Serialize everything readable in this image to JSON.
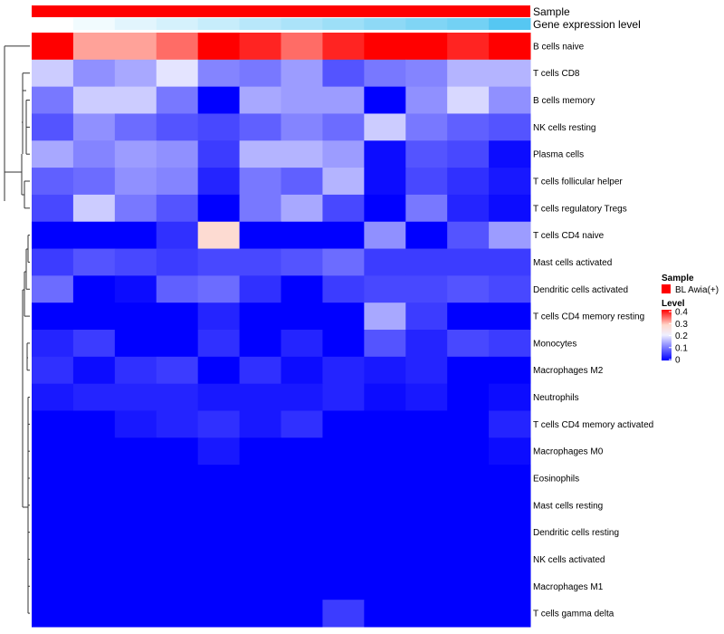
{
  "chart_data": {
    "type": "heatmap",
    "annotations": {
      "sample_label": "Sample",
      "expression_label": "Gene expression level"
    },
    "rows": [
      "B cells naive",
      "T cells CD8",
      "B cells memory",
      "NK cells resting",
      "Plasma cells",
      "T cells follicular helper",
      "T cells regulatory  Tregs",
      "T cells CD4 naive",
      "Mast cells activated",
      "Dendritic cells activated",
      "T cells CD4 memory resting",
      "Monocytes",
      "Macrophages M2",
      "Neutrophils",
      "T cells CD4 memory activated",
      "Macrophages M0",
      "Eosinophils",
      "Mast cells resting",
      "Dendritic cells resting",
      "NK cells activated",
      "Macrophages M1",
      "T cells gamma delta"
    ],
    "values": [
      [
        0.4,
        0.31,
        0.31,
        0.34,
        0.4,
        0.38,
        0.34,
        0.38,
        0.4,
        0.4,
        0.38,
        0.4
      ],
      [
        0.17,
        0.12,
        0.14,
        0.19,
        0.11,
        0.1,
        0.13,
        0.07,
        0.1,
        0.11,
        0.15,
        0.15
      ],
      [
        0.1,
        0.17,
        0.17,
        0.1,
        0.0,
        0.14,
        0.13,
        0.13,
        0.0,
        0.12,
        0.18,
        0.12
      ],
      [
        0.07,
        0.12,
        0.09,
        0.07,
        0.06,
        0.08,
        0.11,
        0.09,
        0.17,
        0.1,
        0.08,
        0.07
      ],
      [
        0.14,
        0.11,
        0.13,
        0.12,
        0.05,
        0.15,
        0.15,
        0.13,
        0.01,
        0.07,
        0.06,
        0.01
      ],
      [
        0.08,
        0.09,
        0.12,
        0.11,
        0.03,
        0.1,
        0.08,
        0.15,
        0.01,
        0.06,
        0.04,
        0.02
      ],
      [
        0.06,
        0.17,
        0.1,
        0.07,
        0.0,
        0.1,
        0.14,
        0.06,
        0.0,
        0.1,
        0.03,
        0.01
      ],
      [
        0.0,
        0.0,
        0.0,
        0.04,
        0.27,
        0.0,
        0.0,
        0.0,
        0.12,
        0.0,
        0.07,
        0.13
      ],
      [
        0.05,
        0.07,
        0.06,
        0.05,
        0.06,
        0.06,
        0.07,
        0.09,
        0.05,
        0.05,
        0.05,
        0.05
      ],
      [
        0.09,
        0.0,
        0.01,
        0.08,
        0.09,
        0.04,
        0.0,
        0.05,
        0.06,
        0.06,
        0.07,
        0.06
      ],
      [
        0.0,
        0.0,
        0.0,
        0.0,
        0.03,
        0.0,
        0.0,
        0.0,
        0.14,
        0.05,
        0.0,
        0.0
      ],
      [
        0.03,
        0.05,
        0.0,
        0.0,
        0.04,
        0.0,
        0.03,
        0.0,
        0.07,
        0.03,
        0.06,
        0.05
      ],
      [
        0.04,
        0.01,
        0.04,
        0.05,
        0.0,
        0.04,
        0.01,
        0.03,
        0.02,
        0.03,
        0.0,
        0.0
      ],
      [
        0.02,
        0.03,
        0.03,
        0.03,
        0.02,
        0.02,
        0.02,
        0.03,
        0.01,
        0.02,
        0.0,
        0.01
      ],
      [
        0.0,
        0.0,
        0.02,
        0.03,
        0.04,
        0.02,
        0.04,
        0.0,
        0.0,
        0.0,
        0.0,
        0.03
      ],
      [
        0.0,
        0.0,
        0.0,
        0.0,
        0.02,
        0.0,
        0.0,
        0.0,
        0.0,
        0.0,
        0.0,
        0.01
      ],
      [
        0.0,
        0.0,
        0.0,
        0.0,
        0.0,
        0.0,
        0.0,
        0.0,
        0.0,
        0.0,
        0.0,
        0.0
      ],
      [
        0.0,
        0.0,
        0.0,
        0.0,
        0.0,
        0.0,
        0.0,
        0.0,
        0.0,
        0.0,
        0.0,
        0.0
      ],
      [
        0.0,
        0.0,
        0.0,
        0.0,
        0.0,
        0.0,
        0.0,
        0.0,
        0.0,
        0.0,
        0.0,
        0.0
      ],
      [
        0.0,
        0.0,
        0.0,
        0.0,
        0.0,
        0.0,
        0.0,
        0.0,
        0.0,
        0.0,
        0.0,
        0.0
      ],
      [
        0.0,
        0.0,
        0.0,
        0.0,
        0.0,
        0.0,
        0.0,
        0.0,
        0.0,
        0.0,
        0.0,
        0.0
      ],
      [
        0.0,
        0.0,
        0.0,
        0.0,
        0.0,
        0.0,
        0.0,
        0.05,
        0.0,
        0.0,
        0.0,
        0.0
      ]
    ],
    "expression_level": [
      0.0,
      0.08,
      0.17,
      0.25,
      0.33,
      0.42,
      0.5,
      0.58,
      0.67,
      0.75,
      0.83,
      1.0
    ],
    "color_scale": {
      "min": 0,
      "max": 0.4,
      "stops": [
        {
          "value": 0.0,
          "color": "#0000ff"
        },
        {
          "value": 0.2,
          "color": "#f0f0ff"
        },
        {
          "value": 0.28,
          "color": "#ffd8cc"
        },
        {
          "value": 0.4,
          "color": "#ff0000"
        }
      ]
    },
    "expression_colors": {
      "low": "#ffffff",
      "high": "#56c7f2"
    },
    "legend": {
      "sample_title": "Sample",
      "sample_entry": "BL Awia(+)",
      "sample_color": "#ff0000",
      "level_title": "Level",
      "ticks": [
        "0.4",
        "0.3",
        "0.2",
        "0.1",
        "0"
      ],
      "placement": "right"
    }
  }
}
